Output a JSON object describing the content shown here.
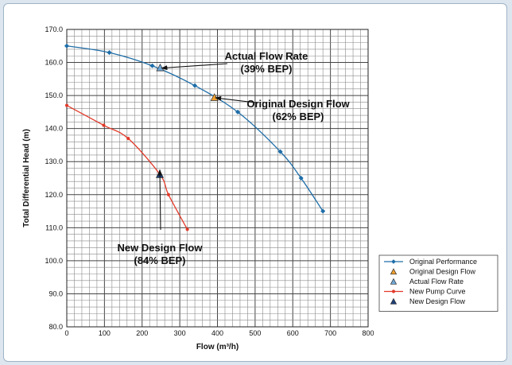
{
  "chart_data": {
    "type": "line",
    "xlabel": "Flow (m³/h)",
    "ylabel": "Total Differential Head (m)",
    "xlim": [
      0,
      800
    ],
    "ylim": [
      80,
      170
    ],
    "x_ticks": [
      "0",
      "100",
      "200",
      "300",
      "400",
      "500",
      "600",
      "700",
      "800"
    ],
    "y_ticks": [
      "80.0",
      "90.0",
      "100.0",
      "110.0",
      "120.0",
      "130.0",
      "140.0",
      "150.0",
      "160.0",
      "170.0"
    ],
    "grid": true,
    "legend_position": "bottom-right",
    "series": [
      {
        "name": "Original Performance",
        "kind": "line",
        "color": "#1f6ea8",
        "marker": "diamond",
        "x": [
          0,
          113,
          227,
          340,
          454,
          567,
          622,
          680
        ],
        "y": [
          165,
          163,
          159,
          153,
          145,
          133,
          125,
          115
        ]
      },
      {
        "name": "Original Design Flow",
        "kind": "point",
        "color": "#f0a030",
        "marker": "triangle",
        "x": [
          392
        ],
        "y": [
          149.3
        ]
      },
      {
        "name": "Actual Flow Rate",
        "kind": "point",
        "color": "#6fa8d8",
        "marker": "triangle",
        "x": [
          248
        ],
        "y": [
          158.3
        ]
      },
      {
        "name": "New Pump Curve",
        "kind": "line",
        "color": "#e23a2a",
        "marker": "circle",
        "x": [
          0,
          98,
          163,
          248,
          270,
          320
        ],
        "y": [
          147,
          141,
          137,
          126,
          120,
          109.5
        ]
      },
      {
        "name": "New Design Flow",
        "kind": "point",
        "color": "#1d3f78",
        "marker": "triangle",
        "x": [
          247
        ],
        "y": [
          126
        ]
      }
    ],
    "annotations": [
      {
        "text": "Actual Flow Rate\n(39% BEP)",
        "target": [
          252,
          158.3
        ]
      },
      {
        "text": "Original Design Flow\n(62% BEP)",
        "target": [
          395,
          149.3
        ]
      },
      {
        "text": "New Design Flow\n(84% BEP)",
        "target": [
          247,
          127.5
        ]
      }
    ]
  }
}
